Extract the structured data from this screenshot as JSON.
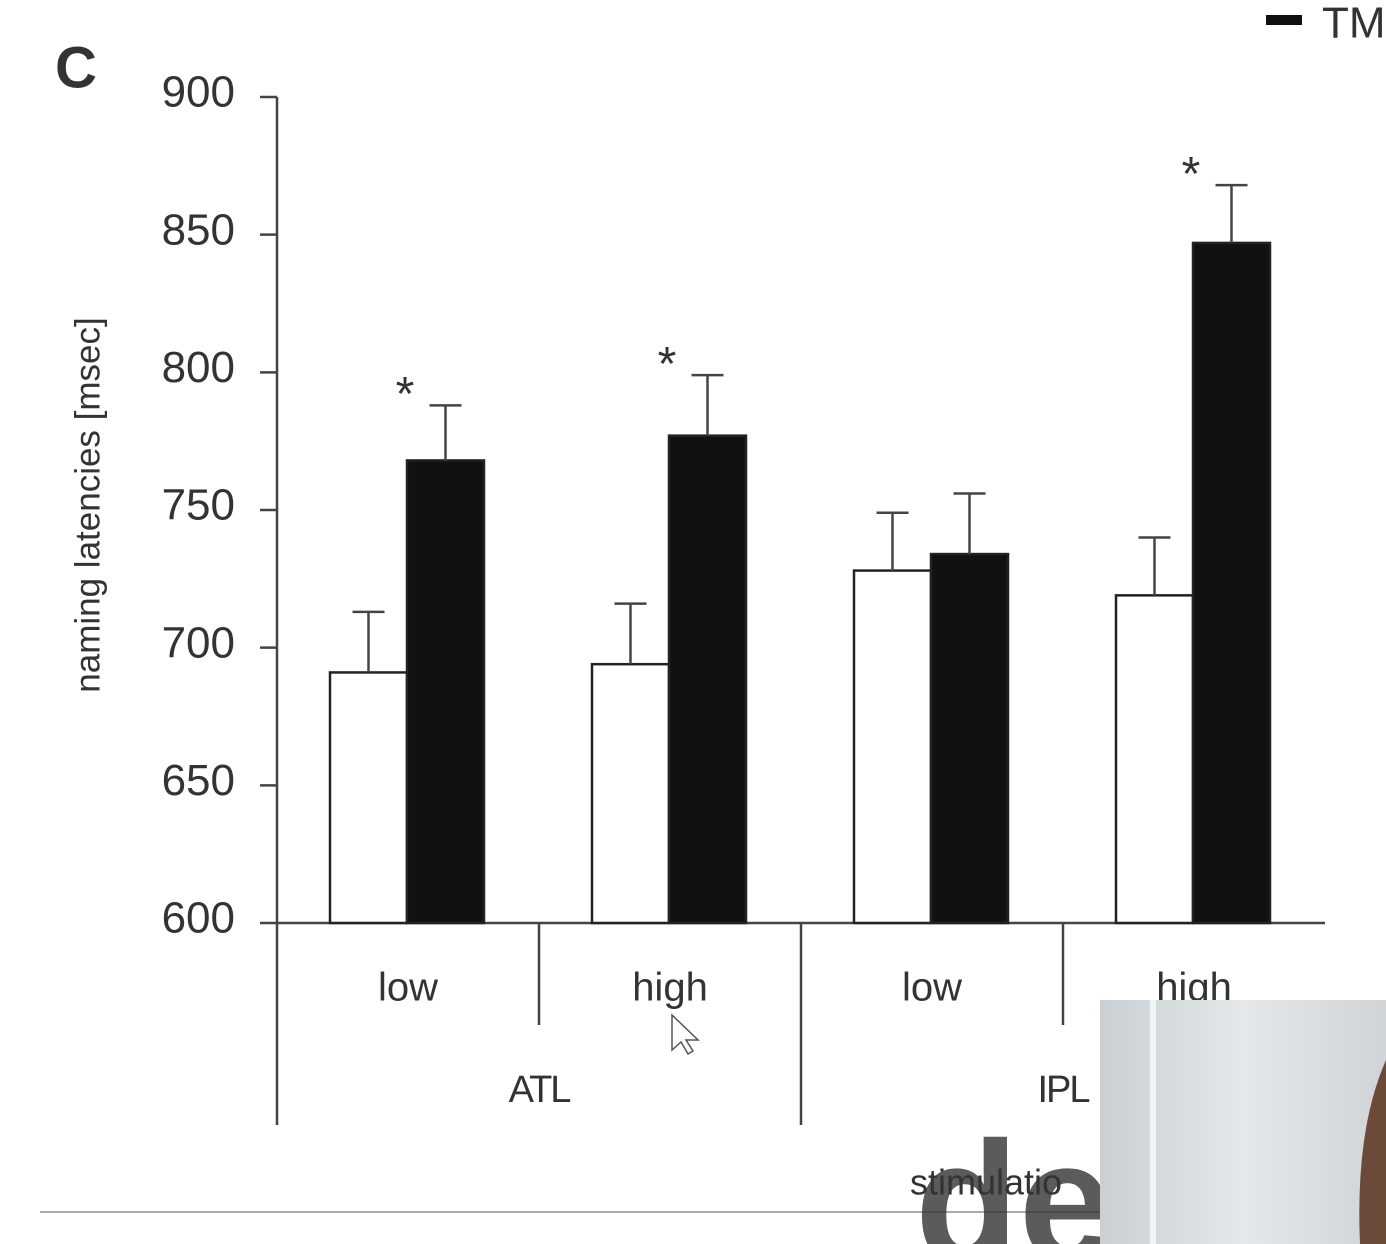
{
  "chart_data": {
    "type": "bar",
    "panel_label": "C",
    "ylabel": "naming latencies [msec]",
    "xlabel": "stimulatio",
    "categories": [
      "low",
      "high",
      "low",
      "high"
    ],
    "groups": [
      "ATL",
      "IPL"
    ],
    "series": [
      {
        "color": "#ffffff",
        "values": [
          691,
          694,
          728,
          719
        ],
        "errors": [
          22,
          22,
          21,
          21
        ]
      },
      {
        "name": "TM",
        "color": "#111111",
        "values": [
          768,
          777,
          734,
          847
        ],
        "errors": [
          20,
          22,
          22,
          21
        ]
      }
    ],
    "annotations": [
      {
        "text": "*",
        "category": 0
      },
      {
        "text": "*",
        "category": 1
      },
      {
        "text": "*",
        "category": 3
      }
    ],
    "ylim": [
      600,
      900
    ],
    "yticks": [
      600,
      650,
      700,
      750,
      800,
      850,
      900
    ],
    "watermark": "descr"
  }
}
